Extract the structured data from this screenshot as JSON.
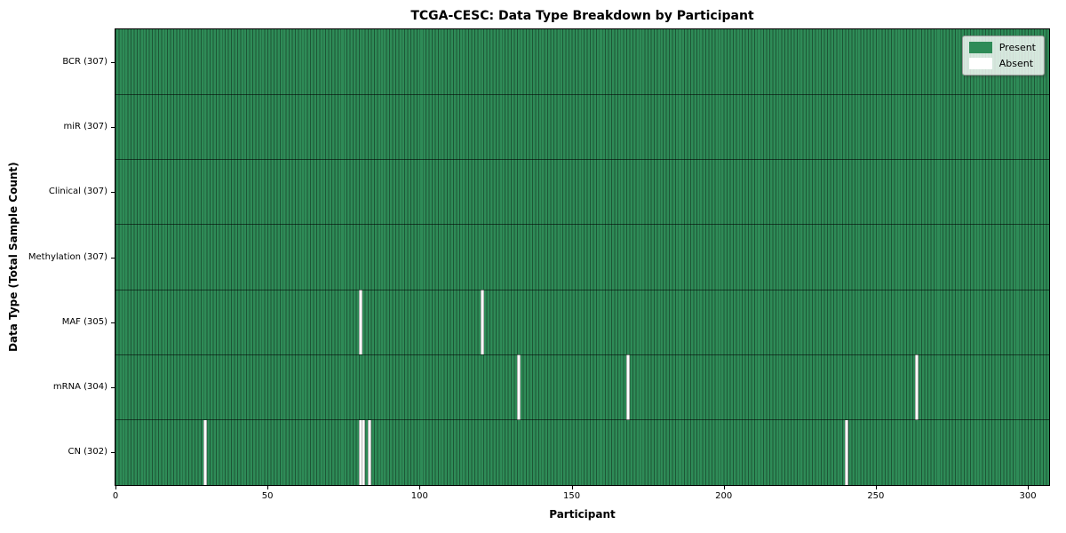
{
  "chart_data": {
    "type": "heatmap",
    "title": "TCGA-CESC: Data Type Breakdown by Participant",
    "xlabel": "Participant",
    "ylabel": "Data Type (Total Sample Count)",
    "n_participants": 307,
    "x_ticks": [
      0,
      50,
      100,
      150,
      200,
      250,
      300
    ],
    "rows": [
      {
        "label": "BCR (307)",
        "data_type": "BCR",
        "total_samples": 307,
        "absent_participants": []
      },
      {
        "label": "miR (307)",
        "data_type": "miR",
        "total_samples": 307,
        "absent_participants": []
      },
      {
        "label": "Clinical (307)",
        "data_type": "Clinical",
        "total_samples": 307,
        "absent_participants": []
      },
      {
        "label": "Methylation (307)",
        "data_type": "Methylation",
        "total_samples": 307,
        "absent_participants": []
      },
      {
        "label": "MAF (305)",
        "data_type": "MAF",
        "total_samples": 305,
        "absent_participants": [
          80,
          120
        ]
      },
      {
        "label": "mRNA (304)",
        "data_type": "mRNA",
        "total_samples": 304,
        "absent_participants": [
          132,
          168,
          263
        ]
      },
      {
        "label": "CN (302)",
        "data_type": "CN",
        "total_samples": 302,
        "absent_participants": [
          29,
          80,
          81,
          83,
          240
        ]
      }
    ],
    "legend": {
      "position": "upper right",
      "entries": [
        {
          "label": "Present",
          "color": "#2e8b57"
        },
        {
          "label": "Absent",
          "color": "#ffffff"
        }
      ]
    },
    "colors": {
      "present": "#2e8b57",
      "absent": "#ffffff",
      "cell_edge": "rgba(0,0,0,0.38)",
      "row_divider": "rgba(0,0,0,0.55)",
      "spine": "#000000"
    },
    "grid": "cell-edges",
    "x_range": [
      0,
      307
    ]
  }
}
